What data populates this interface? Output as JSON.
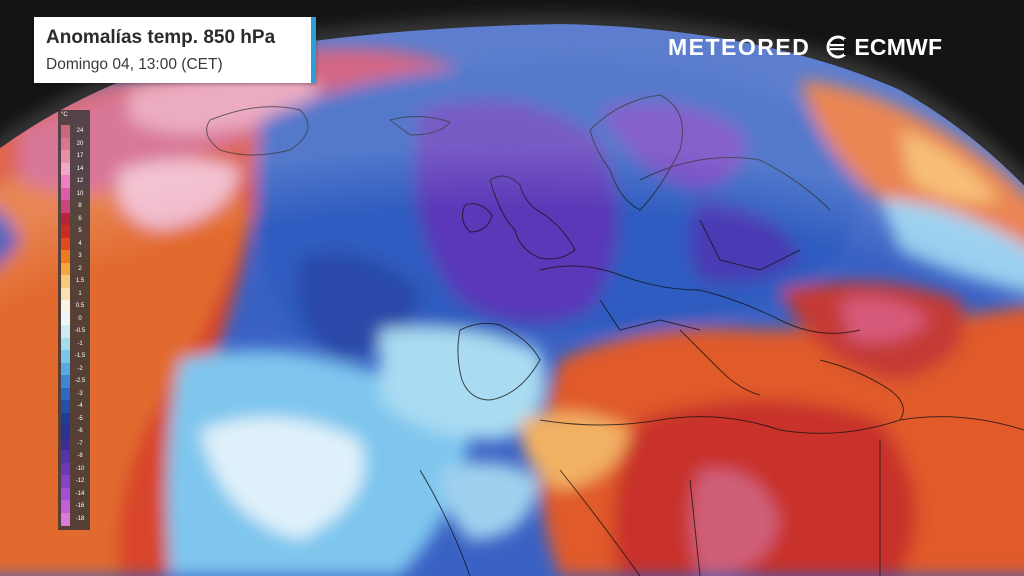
{
  "header": {
    "title": "Anomalías temp. 850 hPa",
    "subtitle": "Domingo 04, 13:00 (CET)"
  },
  "branding": {
    "meteored": "METEORED",
    "ecmwf": "ECMWF"
  },
  "legend": {
    "unit": "°C",
    "labels": [
      "24",
      "20",
      "17",
      "14",
      "12",
      "10",
      "8",
      "6",
      "5",
      "4",
      "3",
      "2",
      "1.5",
      "1",
      "0.5",
      "0",
      "-0.5",
      "-1",
      "-1.5",
      "-2",
      "-2.5",
      "-3",
      "-4",
      "-5",
      "-6",
      "-7",
      "-8",
      "-10",
      "-12",
      "-14",
      "-16",
      "-18"
    ],
    "colors": [
      "#c86a7a",
      "#d9788c",
      "#e990a8",
      "#f0a7c8",
      "#ef7fc0",
      "#df5aa8",
      "#c8457e",
      "#b5253a",
      "#cc2a22",
      "#e04a1e",
      "#ee7a22",
      "#f6a542",
      "#f7c978",
      "#f8e2b2",
      "#fbf3e6",
      "#eef6f8",
      "#cdebf2",
      "#a6dcef",
      "#7cc6ec",
      "#59a9e2",
      "#3d86d2",
      "#2f68c0",
      "#2550a8",
      "#223d95",
      "#2a3490",
      "#3b2e94",
      "#5533a8",
      "#6a38b8",
      "#8542c8",
      "#a24fd4",
      "#c060d8",
      "#d77ad8"
    ]
  },
  "colors": {
    "title_accent": "#2a9fd8",
    "background": "#141414",
    "cold_core": "#5a38b8",
    "warm_core": "#c82a26"
  }
}
